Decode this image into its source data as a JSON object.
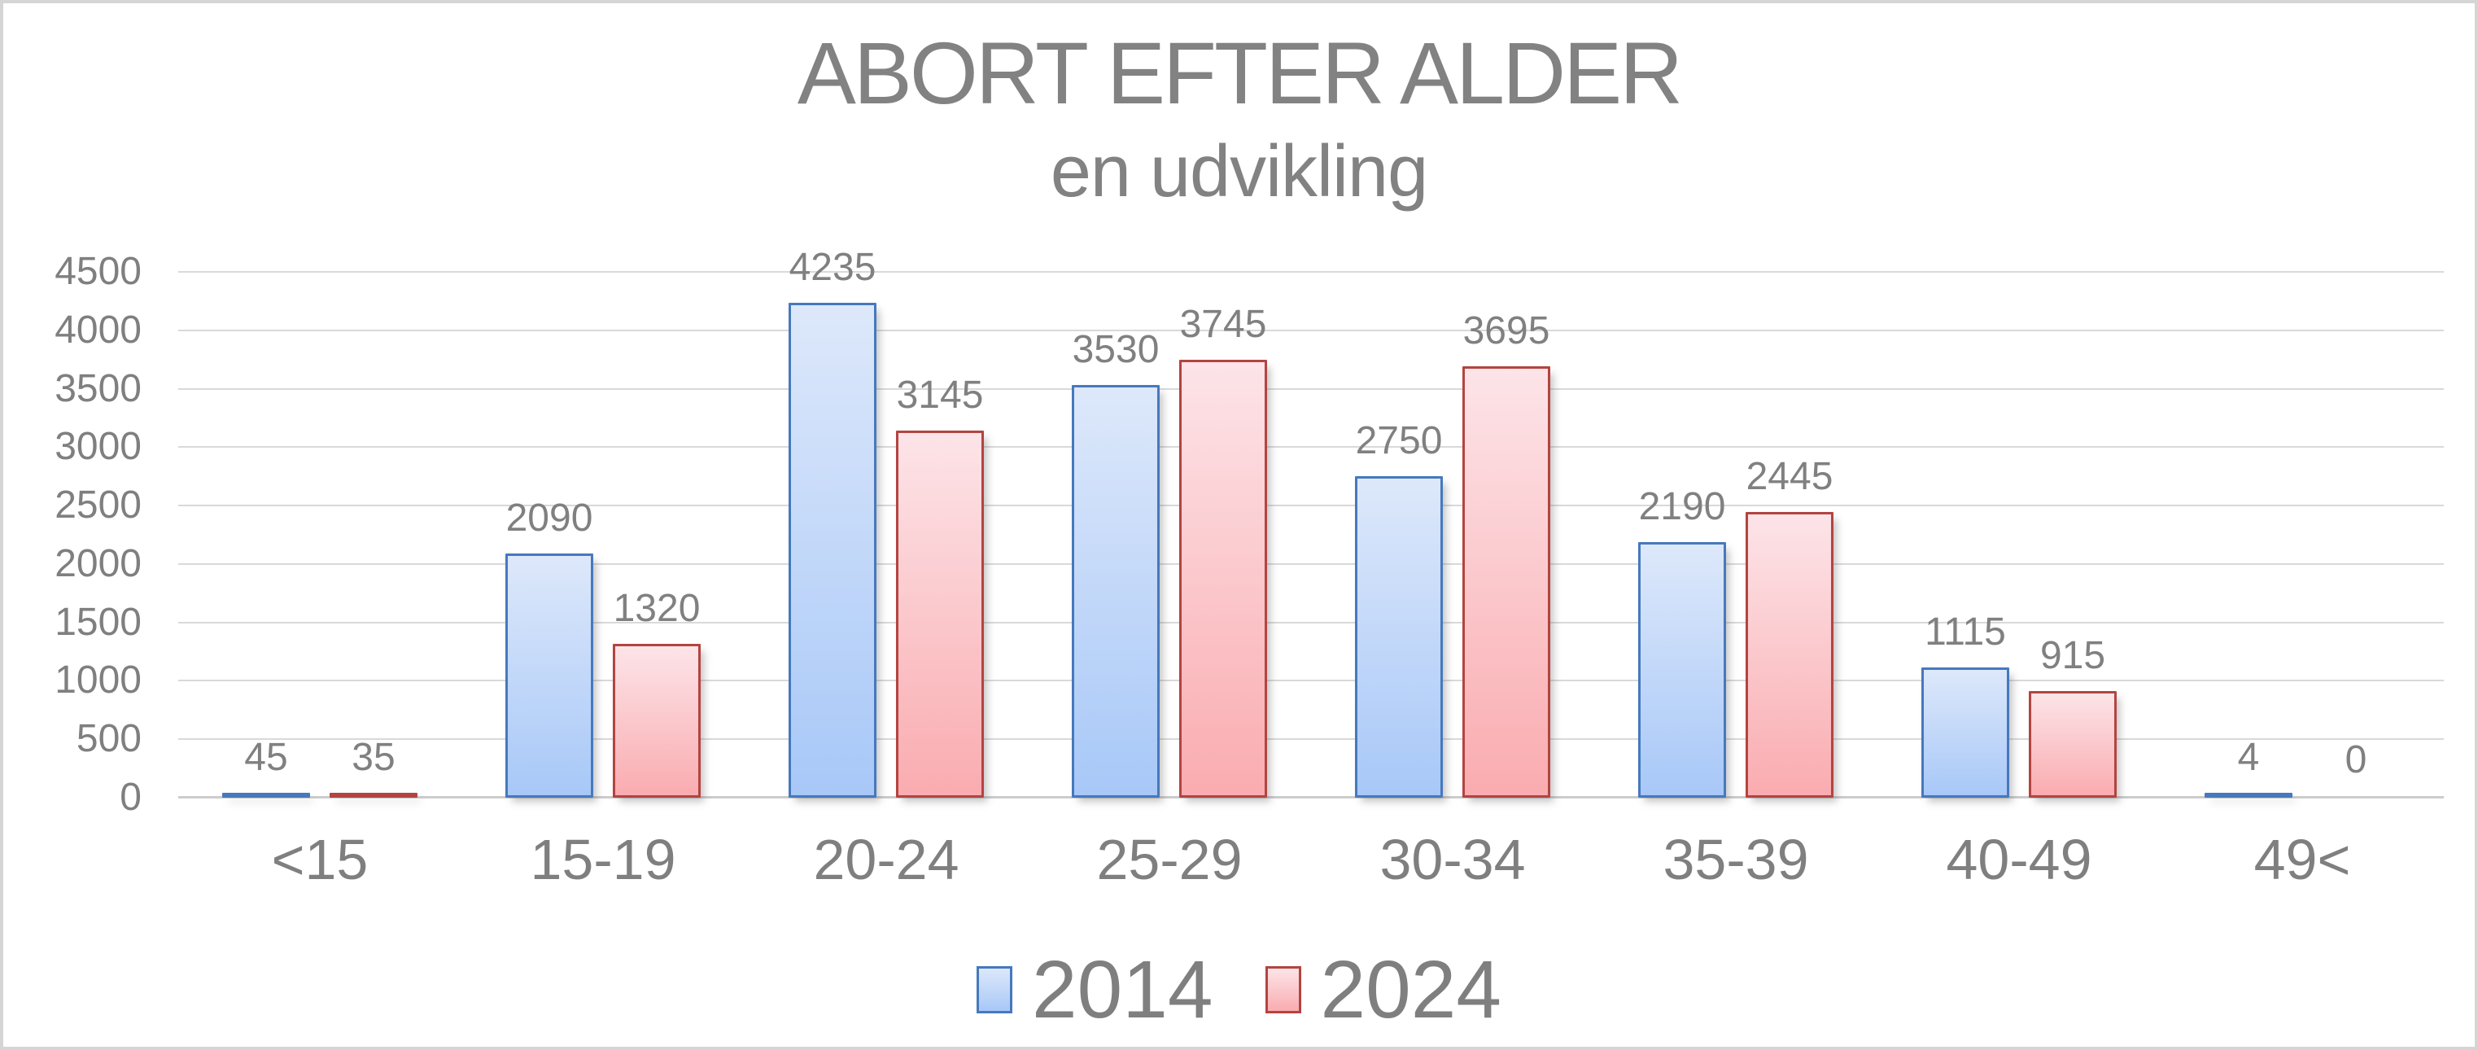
{
  "window": {
    "background": "#ffffff",
    "border_color": "#d5d5d5"
  },
  "chart_data": {
    "type": "bar",
    "title": "ABORT EFTER ALDER",
    "subtitle": "en udvikling",
    "categories": [
      "<15",
      "15-19",
      "20-24",
      "25-29",
      "30-34",
      "35-39",
      "40-49",
      "49<"
    ],
    "series": [
      {
        "name": "2014",
        "values": [
          45,
          2090,
          4235,
          3530,
          2750,
          2190,
          1115,
          4
        ],
        "border_color": "#4679bd",
        "fill_top": "#dde8fa",
        "fill_bottom": "#a8c8f8"
      },
      {
        "name": "2024",
        "values": [
          35,
          1320,
          3145,
          3745,
          3695,
          2445,
          915,
          0
        ],
        "border_color": "#b34440",
        "fill_top": "#fce4e8",
        "fill_bottom": "#faacb0"
      }
    ],
    "ylim": [
      0,
      4500
    ],
    "yticks": [
      "0",
      "500",
      "1000",
      "1500",
      "2000",
      "2500",
      "3000",
      "3500",
      "4000",
      "4500"
    ],
    "grid": true,
    "gridline_color": "#d9d9d9",
    "baseline_color": "#cccccc",
    "text_color": "#808080",
    "title_color": "#828282",
    "legend_position": "bottom",
    "data_labels": true
  },
  "legend": {
    "items": [
      {
        "label": "2014"
      },
      {
        "label": "2024"
      }
    ]
  }
}
